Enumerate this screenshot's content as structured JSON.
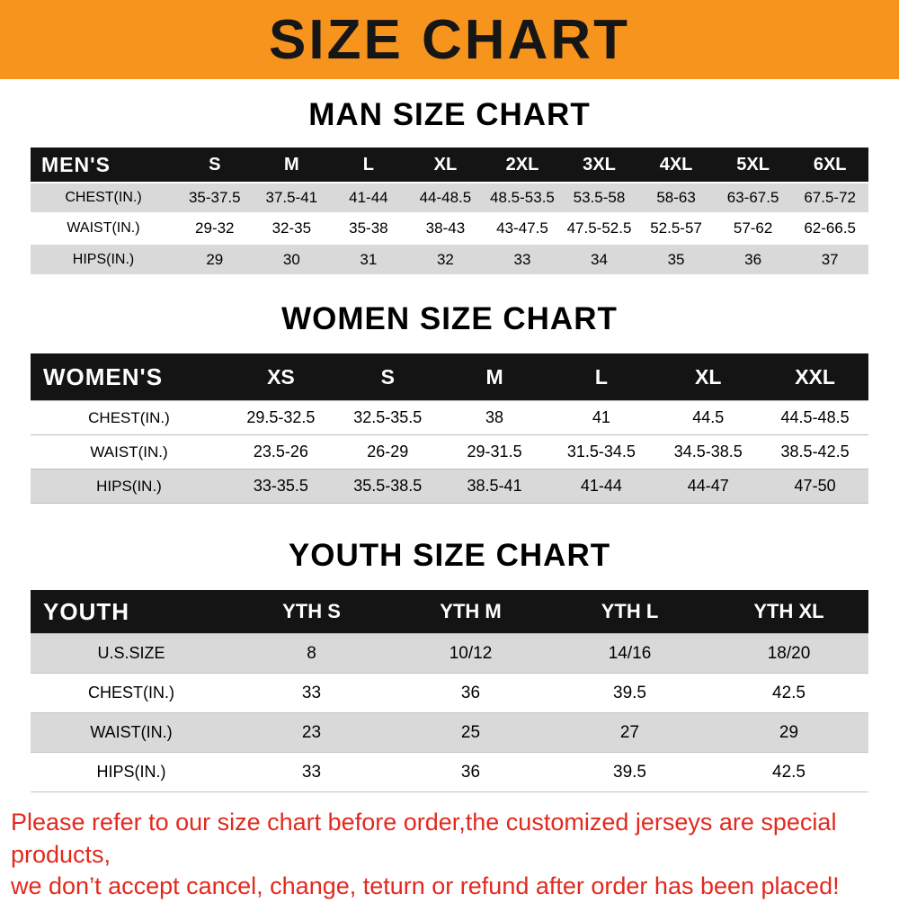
{
  "banner": {
    "title": "SIZE CHART"
  },
  "colors": {
    "banner_bg": "#f7941d",
    "table_header_bg": "#141414",
    "zebra_row": "#d9d9d9",
    "footer_text": "#e2291f"
  },
  "sections": [
    {
      "title": "MAN SIZE CHART",
      "table": {
        "header": [
          "MEN'S",
          "S",
          "M",
          "L",
          "XL",
          "2XL",
          "3XL",
          "4XL",
          "5XL",
          "6XL"
        ],
        "rows": [
          [
            "CHEST(IN.)",
            "35-37.5",
            "37.5-41",
            "41-44",
            "44-48.5",
            "48.5-53.5",
            "53.5-58",
            "58-63",
            "63-67.5",
            "67.5-72"
          ],
          [
            "WAIST(IN.)",
            "29-32",
            "32-35",
            "35-38",
            "38-43",
            "43-47.5",
            "47.5-52.5",
            "52.5-57",
            "57-62",
            "62-66.5"
          ],
          [
            "HIPS(IN.)",
            "29",
            "30",
            "31",
            "32",
            "33",
            "34",
            "35",
            "36",
            "37"
          ]
        ]
      }
    },
    {
      "title": "WOMEN SIZE CHART",
      "table": {
        "header": [
          "WOMEN'S",
          "XS",
          "S",
          "M",
          "L",
          "XL",
          "XXL"
        ],
        "rows": [
          [
            "CHEST(IN.)",
            "29.5-32.5",
            "32.5-35.5",
            "38",
            "41",
            "44.5",
            "44.5-48.5"
          ],
          [
            "WAIST(IN.)",
            "23.5-26",
            "26-29",
            "29-31.5",
            "31.5-34.5",
            "34.5-38.5",
            "38.5-42.5"
          ],
          [
            "HIPS(IN.)",
            "33-35.5",
            "35.5-38.5",
            "38.5-41",
            "41-44",
            "44-47",
            "47-50"
          ]
        ]
      }
    },
    {
      "title": "YOUTH SIZE CHART",
      "table": {
        "header": [
          "YOUTH",
          "YTH S",
          "YTH M",
          "YTH L",
          "YTH XL"
        ],
        "rows": [
          [
            "U.S.SIZE",
            "8",
            "10/12",
            "14/16",
            "18/20"
          ],
          [
            "CHEST(IN.)",
            "33",
            "36",
            "39.5",
            "42.5"
          ],
          [
            "WAIST(IN.)",
            "23",
            "25",
            "27",
            "29"
          ],
          [
            "HIPS(IN.)",
            "33",
            "36",
            "39.5",
            "42.5"
          ]
        ]
      }
    }
  ],
  "footer": {
    "line1": "Please refer to our size chart before order,the customized jerseys are special products,",
    "line2": "we don’t accept cancel, change, teturn or refund after order has been placed!"
  }
}
